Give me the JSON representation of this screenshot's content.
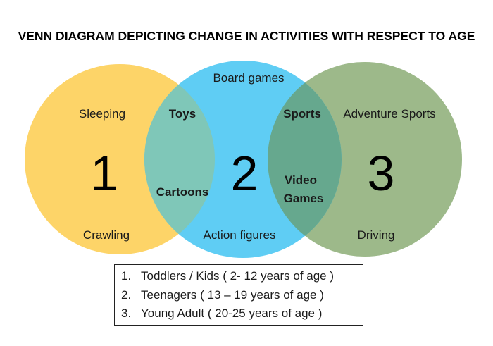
{
  "title": "VENN DIAGRAM DEPICTING CHANGE IN ACTIVITIES WITH RESPECT TO AGE",
  "colors": {
    "circle_1": "#fdd468",
    "circle_2": "#5fcdf4",
    "circle_3": "#9db98a",
    "overlap_1_2": "#7fc7b8",
    "overlap_2_3": "#66a88e"
  },
  "circles": [
    {
      "number": "1",
      "labels": {
        "top": "Sleeping",
        "bottom": "Crawling"
      }
    },
    {
      "number": "2",
      "labels": {
        "top": "Board games",
        "bottom": "Action figures"
      }
    },
    {
      "number": "3",
      "labels": {
        "top": "Adventure Sports",
        "bottom": "Driving"
      }
    }
  ],
  "overlaps": {
    "one_two": [
      "Toys",
      "Cartoons"
    ],
    "two_three": [
      "Sports",
      "Video",
      "Games"
    ]
  },
  "legend": [
    {
      "num": "1.",
      "text": "Toddlers / Kids ( 2- 12 years of age )"
    },
    {
      "num": "2.",
      "text": "Teenagers ( 13 – 19 years of age )"
    },
    {
      "num": "3.",
      "text": "Young Adult ( 20-25 years of age )"
    }
  ]
}
